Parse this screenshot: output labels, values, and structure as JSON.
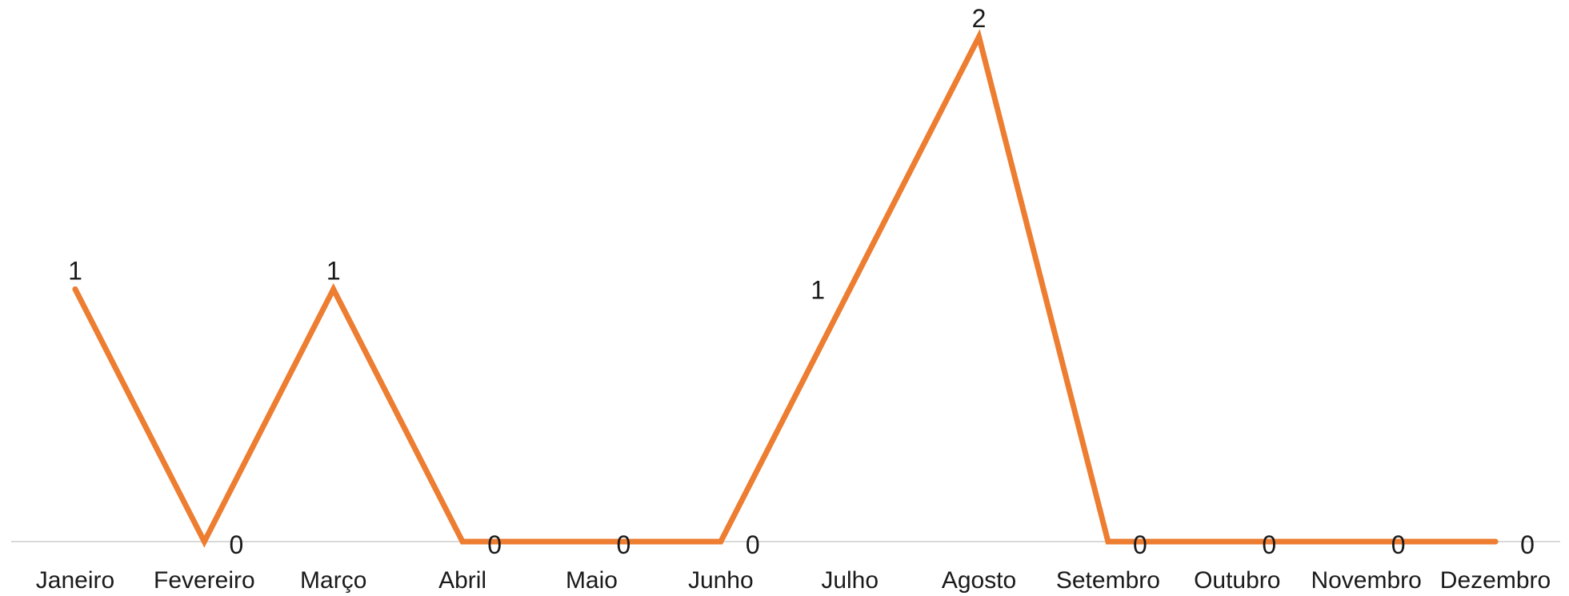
{
  "chart_data": {
    "type": "line",
    "categories": [
      "Janeiro",
      "Fevereiro",
      "Março",
      "Abril",
      "Maio",
      "Junho",
      "Julho",
      "Agosto",
      "Setembro",
      "Outubro",
      "Novembro",
      "Dezembro"
    ],
    "series": [
      {
        "values": [
          1,
          0,
          1,
          0,
          0,
          0,
          1,
          2,
          0,
          0,
          0,
          0
        ],
        "color": "#ED7D31",
        "data_labels": [
          "1",
          "0",
          "1",
          "0",
          "0",
          "0",
          "1",
          "2",
          "0",
          "0",
          "0",
          "0"
        ]
      }
    ],
    "title": "",
    "xlabel": "",
    "ylabel": "",
    "ylim": [
      0,
      2
    ],
    "grid": false,
    "legend": "none"
  }
}
